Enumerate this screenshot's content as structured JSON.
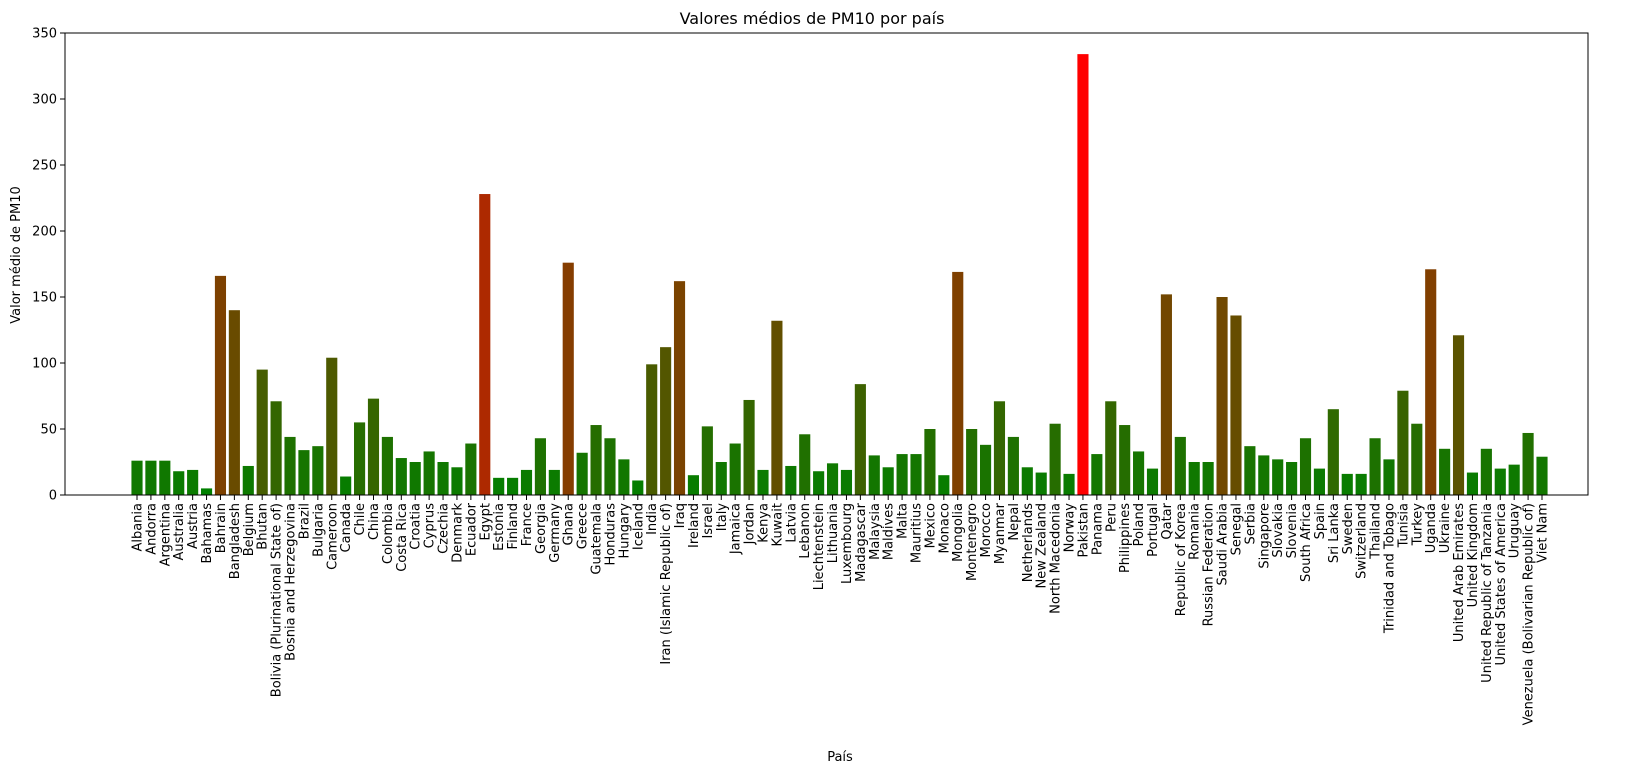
{
  "chart_data": {
    "type": "bar",
    "title": "Valores médios de PM10 por país",
    "xlabel": "País",
    "ylabel": "Valor médio de PM10",
    "ylim": [
      0,
      350
    ],
    "yticks": [
      "0",
      "50",
      "100",
      "150",
      "200",
      "250",
      "300",
      "350"
    ],
    "grid": false,
    "color_low": "#008000",
    "color_high": "#ff0000",
    "categories": [
      "Albania",
      "Andorra",
      "Argentina",
      "Australia",
      "Austria",
      "Bahamas",
      "Bahrain",
      "Bangladesh",
      "Belgium",
      "Bhutan",
      "Bolivia (Plurinational State of)",
      "Bosnia and Herzegovina",
      "Brazil",
      "Bulgaria",
      "Cameroon",
      "Canada",
      "Chile",
      "China",
      "Colombia",
      "Costa Rica",
      "Croatia",
      "Cyprus",
      "Czechia",
      "Denmark",
      "Ecuador",
      "Egypt",
      "Estonia",
      "Finland",
      "France",
      "Georgia",
      "Germany",
      "Ghana",
      "Greece",
      "Guatemala",
      "Honduras",
      "Hungary",
      "Iceland",
      "India",
      "Iran (Islamic Republic of)",
      "Iraq",
      "Ireland",
      "Israel",
      "Italy",
      "Jamaica",
      "Jordan",
      "Kenya",
      "Kuwait",
      "Latvia",
      "Lebanon",
      "Liechtenstein",
      "Lithuania",
      "Luxembourg",
      "Madagascar",
      "Malaysia",
      "Maldives",
      "Malta",
      "Mauritius",
      "Mexico",
      "Monaco",
      "Mongolia",
      "Montenegro",
      "Morocco",
      "Myanmar",
      "Nepal",
      "Netherlands",
      "New Zealand",
      "North Macedonia",
      "Norway",
      "Pakistan",
      "Panama",
      "Peru",
      "Philippines",
      "Poland",
      "Portugal",
      "Qatar",
      "Republic of Korea",
      "Romania",
      "Russian Federation",
      "Saudi Arabia",
      "Senegal",
      "Serbia",
      "Singapore",
      "Slovakia",
      "Slovenia",
      "South Africa",
      "Spain",
      "Sri Lanka",
      "Sweden",
      "Switzerland",
      "Thailand",
      "Trinidad and Tobago",
      "Tunisia",
      "Turkey",
      "Uganda",
      "Ukraine",
      "United Arab Emirates",
      "United Kingdom",
      "United Republic of Tanzania",
      "United States of America",
      "Uruguay",
      "Venezuela (Bolivarian Republic of)",
      "Viet Nam"
    ],
    "values": [
      26,
      26,
      26,
      18,
      19,
      5,
      166,
      140,
      22,
      95,
      71,
      44,
      34,
      37,
      104,
      14,
      55,
      73,
      44,
      28,
      25,
      33,
      25,
      21,
      39,
      228,
      13,
      13,
      19,
      43,
      19,
      176,
      32,
      53,
      43,
      27,
      11,
      99,
      112,
      162,
      15,
      52,
      25,
      39,
      72,
      19,
      132,
      22,
      46,
      18,
      24,
      19,
      84,
      30,
      21,
      31,
      31,
      50,
      15,
      169,
      50,
      38,
      71,
      44,
      21,
      17,
      54,
      16,
      334,
      31,
      71,
      53,
      33,
      20,
      152,
      44,
      25,
      25,
      150,
      136,
      37,
      30,
      27,
      25,
      43,
      20,
      65,
      16,
      16,
      43,
      27,
      79,
      54,
      171,
      35,
      121,
      17,
      35,
      20,
      23,
      47,
      29
    ]
  }
}
